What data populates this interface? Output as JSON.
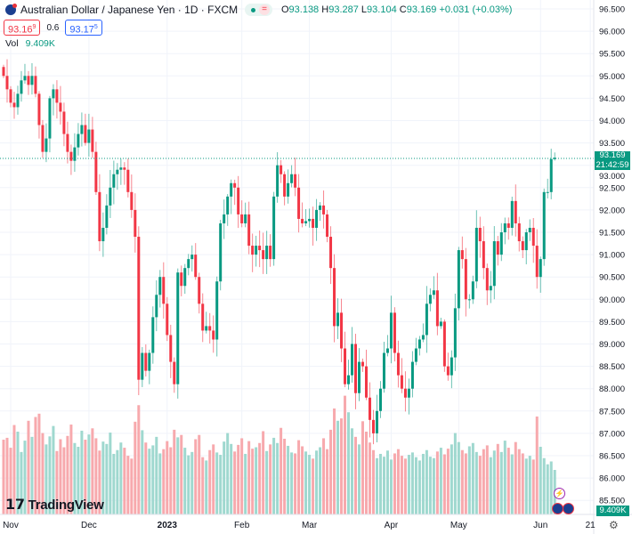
{
  "header": {
    "title": "Australian Dollar / Japanese Yen · 1D · FXCM",
    "status_icon": "market-open-dot",
    "ohlc": {
      "o_label": "O",
      "o": "93.138",
      "h_label": "H",
      "h": "93.287",
      "l_label": "L",
      "l": "93.104",
      "c_label": "C",
      "c": "93.169",
      "change": "+0.031 (+0.03%)"
    },
    "sell_price": "93.16",
    "sell_sup": "9",
    "spread": "0.6",
    "buy_price": "93.17",
    "buy_sup": "5",
    "vol_label": "Vol",
    "vol_value": "9.409K"
  },
  "last_price_label": {
    "price": "93.169",
    "countdown": "21:42:59"
  },
  "volume_label": "9.409K",
  "brand": "TradingView",
  "colors": {
    "up": "#089981",
    "down": "#f23645",
    "up_vol": "#9fd8cf",
    "down_vol": "#f7a9ad",
    "grid": "#f0f3fa"
  },
  "chart_data": {
    "type": "candlestick",
    "title": "Australian Dollar / Japanese Yen · 1D · FXCM",
    "ylim": [
      85.5,
      96.5
    ],
    "y_ticks": [
      "96.500",
      "96.000",
      "95.500",
      "95.000",
      "94.500",
      "94.000",
      "93.500",
      "93.000",
      "92.500",
      "92.000",
      "91.500",
      "91.000",
      "90.500",
      "90.000",
      "89.500",
      "89.000",
      "88.500",
      "88.000",
      "87.500",
      "87.000",
      "86.500",
      "86.000",
      "85.500"
    ],
    "x_ticks": [
      {
        "label": "Nov",
        "index": 2
      },
      {
        "label": "Dec",
        "index": 24
      },
      {
        "label": "2023",
        "index": 46
      },
      {
        "label": "Feb",
        "index": 67
      },
      {
        "label": "Mar",
        "index": 86
      },
      {
        "label": "Apr",
        "index": 109
      },
      {
        "label": "May",
        "index": 128
      },
      {
        "label": "Jun",
        "index": 151
      },
      {
        "label": "21",
        "index": 165
      }
    ],
    "first_open": 95.2,
    "close": [
      95.0,
      94.7,
      94.4,
      94.3,
      94.6,
      94.9,
      95.0,
      94.8,
      95.0,
      94.6,
      93.9,
      93.3,
      93.6,
      94.5,
      94.7,
      94.4,
      94.2,
      93.7,
      93.3,
      93.1,
      93.4,
      93.7,
      93.9,
      93.5,
      93.8,
      93.3,
      92.4,
      91.3,
      91.6,
      92.1,
      92.5,
      92.8,
      92.9,
      92.95,
      92.9,
      92.4,
      92.0,
      91.4,
      88.2,
      88.8,
      88.4,
      88.8,
      89.6,
      90.1,
      90.5,
      89.9,
      89.2,
      88.6,
      88.1,
      90.6,
      90.3,
      90.7,
      90.9,
      91.0,
      90.5,
      89.9,
      89.3,
      89.4,
      89.3,
      89.1,
      90.4,
      91.7,
      91.9,
      92.3,
      92.6,
      92.5,
      91.9,
      91.7,
      91.9,
      91.2,
      91.0,
      91.2,
      91.1,
      90.9,
      91.2,
      90.9,
      92.3,
      93.0,
      92.8,
      92.3,
      92.6,
      92.8,
      92.5,
      91.8,
      91.7,
      91.75,
      91.8,
      91.6,
      92.0,
      92.1,
      91.9,
      91.4,
      90.7,
      89.4,
      89.7,
      88.9,
      88.1,
      88.3,
      89.0,
      87.9,
      88.6,
      88.5,
      87.8,
      87.3,
      87.0,
      87.5,
      88.0,
      88.8,
      88.9,
      89.7,
      88.8,
      88.3,
      88.0,
      87.8,
      88.0,
      88.6,
      88.9,
      89.1,
      89.2,
      89.9,
      90.1,
      90.2,
      89.4,
      89.5,
      88.5,
      88.3,
      88.7,
      89.8,
      91.1,
      90.9,
      90.0,
      90.0,
      90.4,
      91.6,
      91.3,
      90.7,
      90.2,
      90.3,
      91.3,
      91.0,
      91.5,
      91.7,
      91.6,
      92.2,
      91.7,
      91.3,
      91.1,
      91.5,
      91.6,
      91.2,
      90.5,
      90.9,
      92.4,
      92.4,
      93.138,
      93.169
    ],
    "volume_k": [
      15.8,
      16.2,
      14.1,
      18.9,
      17.5,
      13.2,
      15.6,
      19.8,
      16.4,
      20.6,
      21.3,
      17.2,
      14.8,
      16.5,
      18.7,
      13.4,
      15.9,
      14.2,
      16.6,
      19.0,
      15.1,
      14.3,
      17.7,
      15.8,
      16.9,
      18.2,
      16.1,
      13.5,
      15.4,
      14.9,
      17.3,
      12.8,
      13.6,
      15.2,
      14.1,
      12.4,
      11.8,
      19.6,
      23.1,
      17.8,
      15.2,
      13.9,
      14.6,
      16.4,
      12.9,
      13.8,
      15.5,
      14.2,
      17.9,
      16.3,
      16.8,
      14.1,
      12.5,
      13.2,
      15.9,
      16.8,
      12.1,
      11.4,
      13.6,
      14.8,
      13.1,
      12.6,
      15.4,
      17.2,
      14.9,
      13.3,
      14.7,
      16.1,
      12.8,
      15.5,
      13.9,
      14.2,
      15.1,
      17.6,
      13.4,
      14.8,
      16.2,
      15.1,
      18.3,
      16.0,
      14.5,
      13.1,
      12.9,
      15.7,
      14.4,
      13.3,
      12.6,
      11.8,
      13.5,
      14.2,
      16.1,
      13.8,
      17.9,
      22.4,
      19.8,
      20.3,
      25.1,
      21.6,
      18.2,
      16.4,
      14.8,
      19.7,
      17.5,
      15.2,
      13.6,
      11.9,
      12.8,
      12.2,
      13.5,
      11.6,
      12.9,
      13.8,
      12.4,
      11.8,
      12.6,
      13.1,
      12.1,
      11.4,
      12.8,
      13.6,
      12.2,
      11.9,
      13.3,
      14.1,
      12.7,
      13.9,
      14.8,
      17.2,
      15.3,
      13.6,
      12.9,
      14.4,
      15.1,
      13.2,
      12.4,
      13.8,
      14.6,
      12.1,
      13.5,
      14.9,
      13.2,
      15.6,
      14.1,
      12.7,
      15.3,
      13.8,
      12.9,
      11.8,
      12.4,
      11.6,
      20.7,
      14.3,
      11.9,
      10.6,
      11.2,
      9.409
    ],
    "last": {
      "open": 93.138,
      "high": 93.287,
      "low": 93.104,
      "close": 93.169
    },
    "grid": true
  }
}
